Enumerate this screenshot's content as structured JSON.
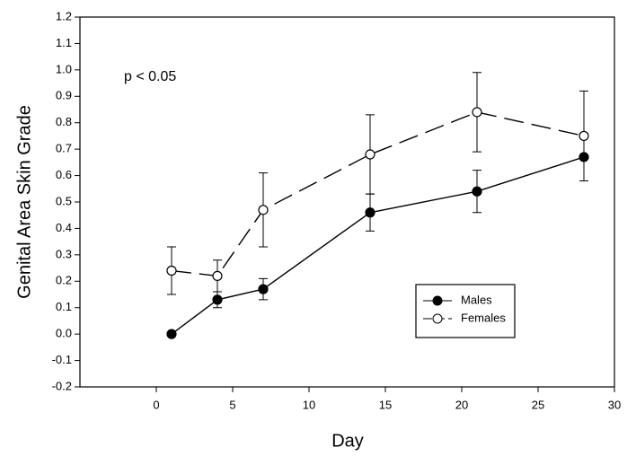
{
  "chart_data": {
    "type": "line",
    "xlabel": "Day",
    "ylabel": "Genital Area Skin Grade",
    "annotation": "p < 0.05",
    "x": [
      1,
      4,
      7,
      14,
      21,
      28
    ],
    "series": [
      {
        "name": "Males",
        "color": "#000000",
        "marker": "filled",
        "linestyle": "solid",
        "values": [
          0.0,
          0.13,
          0.17,
          0.46,
          0.54,
          0.67
        ],
        "errors": [
          null,
          0.03,
          0.04,
          0.07,
          0.08,
          0.09
        ]
      },
      {
        "name": "Females",
        "color": "#000000",
        "marker": "open",
        "linestyle": "dashed",
        "values": [
          0.24,
          0.22,
          0.47,
          0.68,
          0.84,
          0.75
        ],
        "errors": [
          0.09,
          0.06,
          0.14,
          0.15,
          0.15,
          0.17
        ]
      }
    ],
    "xlim": [
      -5,
      30
    ],
    "xticks": [
      0,
      5,
      10,
      15,
      20,
      25,
      30
    ],
    "ylim": [
      -0.2,
      1.2
    ],
    "yticks": [
      -0.2,
      -0.1,
      {
        "value": 0,
        "label": "0.0"
      },
      0.1,
      0.2,
      0.3,
      0.4,
      0.5,
      0.6,
      0.7,
      0.8,
      0.9,
      {
        "value": 1,
        "label": "1.0"
      },
      1.1,
      1.2
    ],
    "legend": "lower right",
    "grid": false
  }
}
